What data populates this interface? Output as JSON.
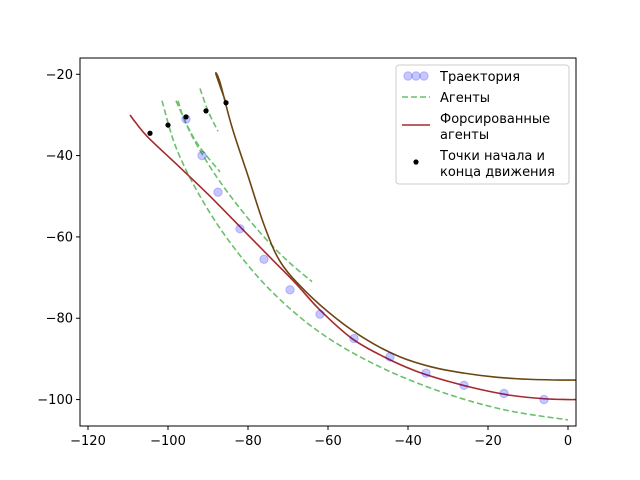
{
  "chart_data": {
    "type": "line",
    "title": "",
    "xlabel": "",
    "ylabel": "",
    "xlim": [
      -122,
      2
    ],
    "ylim": [
      -106.5,
      -16
    ],
    "xticks": [
      -120,
      -100,
      -80,
      -60,
      -40,
      -20,
      0
    ],
    "yticks": [
      -20,
      -40,
      -60,
      -80,
      -100
    ],
    "grid": false,
    "legend_position": "top-right",
    "colors": {
      "trajectory": "#0000ff",
      "agents": "#6cbf6c",
      "forced": "#a52a2a",
      "forced2": "#6b4513",
      "points": "#000000"
    },
    "legend": [
      {
        "key": "trajectory",
        "label": "Траектория"
      },
      {
        "key": "agents",
        "label": "Агенты"
      },
      {
        "key": "forced",
        "label": "Форсированные агенты"
      },
      {
        "key": "points",
        "label": "Точки начала и конца движения"
      }
    ],
    "series": [
      {
        "name": "Траектория",
        "style": "markers",
        "x": [
          -95.5,
          -91.5,
          -87.5,
          -82,
          -76,
          -69.5,
          -62,
          -53.5,
          -44.5,
          -35.5,
          -26,
          -16,
          -6
        ],
        "y": [
          -31,
          -40,
          -49,
          -58,
          -65.5,
          -73,
          -79,
          -85,
          -89.5,
          -93.5,
          -96.5,
          -98.5,
          -100
        ]
      },
      {
        "name": "Агенты",
        "style": "dashed",
        "x": [
          -101.5,
          -98,
          -92,
          -84,
          -74,
          -62,
          -48,
          -32,
          -16,
          0
        ],
        "y": [
          -26.5,
          -38,
          -50,
          -62,
          -73.5,
          -83.5,
          -91.5,
          -98,
          -102.5,
          -105
        ]
      },
      {
        "name": "Агенты",
        "style": "dashed",
        "x": [
          -97.5,
          -96,
          -93,
          -88,
          -82,
          -76,
          -70,
          -64
        ],
        "y": [
          -26.5,
          -31,
          -37,
          -45,
          -53,
          -60,
          -66,
          -71
        ]
      },
      {
        "name": "Агенты",
        "style": "dashed",
        "x": [
          -92,
          -90,
          -87.5
        ],
        "y": [
          -23.5,
          -29,
          -34
        ]
      },
      {
        "name": "Агенты",
        "style": "dashed",
        "x": [
          -98,
          -95,
          -92,
          -87
        ],
        "y": [
          -26.5,
          -33,
          -38,
          -44
        ]
      },
      {
        "name": "Форсированные агенты",
        "style": "solid",
        "x": [
          -109.5,
          -108,
          -105,
          -98,
          -90,
          -82,
          -74,
          -68,
          -62,
          -54,
          -46,
          -38,
          -30,
          -22,
          -14,
          -6,
          0,
          2
        ],
        "y": [
          -30,
          -32,
          -35.5,
          -42,
          -49.5,
          -57.5,
          -65.5,
          -71.5,
          -78,
          -85,
          -89.5,
          -93,
          -95.5,
          -97.5,
          -99,
          -99.8,
          -100,
          -100
        ]
      },
      {
        "name": "Форсированные агенты",
        "style": "solid",
        "x": [
          -85.5,
          -88,
          -87,
          -84,
          -80,
          -76,
          -72,
          -66,
          -58,
          -50,
          -42,
          -34,
          -26,
          -18,
          -10,
          -2,
          2
        ],
        "y": [
          -27,
          -20,
          -22,
          -33,
          -45,
          -57,
          -66,
          -73,
          -80,
          -85.5,
          -89.5,
          -92,
          -93.5,
          -94.5,
          -95,
          -95.2,
          -95.2
        ]
      },
      {
        "name": "Точки начала и конца движения",
        "style": "points",
        "x": [
          -104.5,
          -100,
          -95.5,
          -90.5,
          -85.5
        ],
        "y": [
          -34.5,
          -32.5,
          -30.5,
          -29,
          -27
        ]
      }
    ]
  }
}
